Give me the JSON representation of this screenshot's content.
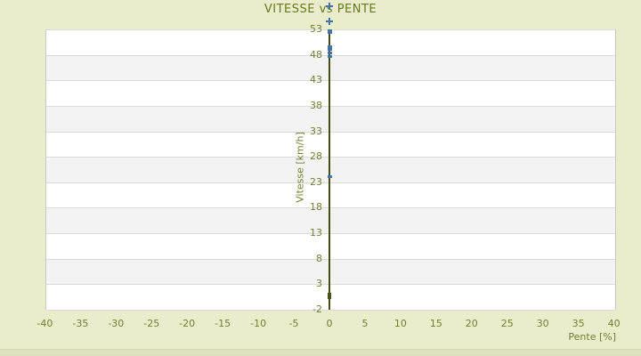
{
  "title": "VITESSE vs PENTE",
  "colors": {
    "background": "#e9edcb",
    "bottom_strip": "#dce2bc",
    "title_text": "#67791f",
    "tick_text": "#767d33",
    "axis_line": "#454f15",
    "gridline": "#dbdbdb",
    "band_gray": "#f3f3f3",
    "band_white": "#ffffff",
    "series_blue": "#4572a7",
    "series_dark_green": "#4b5418"
  },
  "chart_data": {
    "type": "scatter",
    "title": "VITESSE vs PENTE",
    "xlabel": "Pente [%]",
    "ylabel": "Vitesse [km/h]",
    "xlim": [
      -40,
      40
    ],
    "ylim": [
      -2,
      53
    ],
    "x_ticks": [
      -40,
      -35,
      -30,
      -25,
      -20,
      -15,
      -10,
      -5,
      0,
      5,
      10,
      15,
      20,
      25,
      30,
      35,
      40
    ],
    "y_ticks": [
      53,
      48,
      43,
      38,
      33,
      28,
      23,
      18,
      13,
      8,
      3,
      -2
    ],
    "grid": "horizontal gridlines with alternating white/gray bands",
    "legend": "none",
    "y_axis_position": "center at x=0",
    "series": [
      {
        "name": "vitesse-points-blue",
        "color": "#4572a7",
        "points": [
          {
            "x": 0,
            "y": 57.5,
            "marker": "plus"
          },
          {
            "x": 0,
            "y": 54.5,
            "marker": "plus"
          },
          {
            "x": 0,
            "y": 52.7,
            "marker": "square"
          },
          {
            "x": 0,
            "y": 49.7,
            "marker": "dash"
          },
          {
            "x": 0,
            "y": 49.1,
            "marker": "dash"
          },
          {
            "x": 0,
            "y": 48.5,
            "marker": "dash"
          },
          {
            "x": 0,
            "y": 47.7,
            "marker": "dash"
          },
          {
            "x": 0,
            "y": 24.2,
            "marker": "dash"
          }
        ]
      },
      {
        "name": "vitesse-point-dark",
        "color": "#4b5418",
        "points": [
          {
            "x": 0,
            "y": 0.8,
            "marker": "tall-square"
          }
        ]
      }
    ]
  }
}
